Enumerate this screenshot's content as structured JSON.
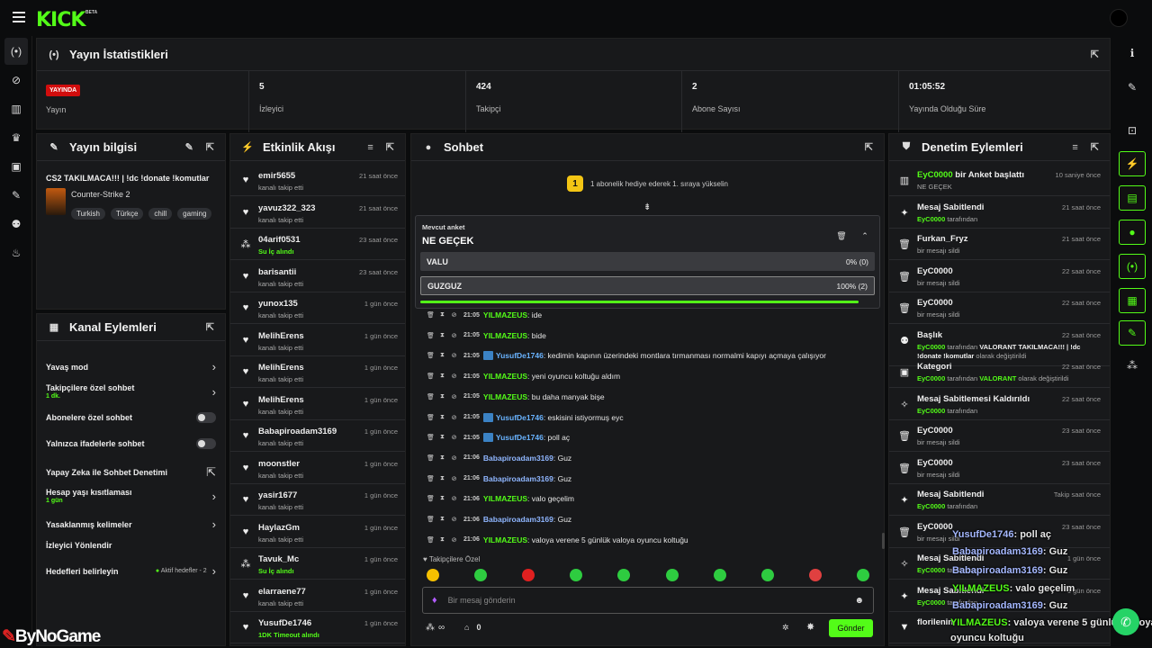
{
  "app": {
    "logo": "KICK",
    "beta": "BETA"
  },
  "left_nav": [
    {
      "icon": "broadcast-icon",
      "glyph": "(•)"
    },
    {
      "icon": "link-icon",
      "glyph": "⊘"
    },
    {
      "icon": "chart-icon",
      "glyph": "▥"
    },
    {
      "icon": "trophy-icon",
      "glyph": "♛"
    },
    {
      "icon": "video-icon",
      "glyph": "▣"
    },
    {
      "icon": "wrench-icon",
      "glyph": "✎"
    },
    {
      "icon": "users-icon",
      "glyph": "⚉"
    },
    {
      "icon": "creator-icon",
      "glyph": "♨"
    }
  ],
  "right_nav": [
    {
      "icon": "info-icon",
      "glyph": "ℹ",
      "boxed": false
    },
    {
      "icon": "pencil-icon",
      "glyph": "✎",
      "boxed": false
    },
    {
      "icon": "shrink-icon",
      "glyph": "⊡",
      "boxed": false
    },
    {
      "icon": "lightning-icon",
      "glyph": "⚡",
      "boxed": true
    },
    {
      "icon": "document-icon",
      "glyph": "▤",
      "boxed": true
    },
    {
      "icon": "chat-icon",
      "glyph": "●",
      "boxed": true
    },
    {
      "icon": "broadcast-icon",
      "glyph": "(•)",
      "boxed": true
    },
    {
      "icon": "layout-icon",
      "glyph": "▦",
      "boxed": true
    },
    {
      "icon": "wrench-icon",
      "glyph": "✎",
      "boxed": true
    },
    {
      "icon": "drops-icon",
      "glyph": "⁂",
      "boxed": false
    }
  ],
  "stats": {
    "title": "Yayın İstatistikleri",
    "live_badge": "YAYINDA",
    "items": [
      {
        "value": "",
        "label": "Yayın"
      },
      {
        "value": "5",
        "label": "İzleyici"
      },
      {
        "value": "424",
        "label": "Takipçi"
      },
      {
        "value": "2",
        "label": "Abone Sayısı"
      },
      {
        "value": "01:05:52",
        "label": "Yayında Olduğu Süre"
      }
    ]
  },
  "stream_info": {
    "title": "Yayın bilgisi",
    "stream_title": "CS2 TAKILMACA!!! | !dc !donate !komutlar",
    "game": "Counter-Strike 2",
    "tags": [
      "Turkish",
      "Türkçe",
      "chill",
      "gaming"
    ]
  },
  "channel_actions": {
    "title": "Kanal Eylemleri",
    "items": [
      {
        "label": "Yavaş mod",
        "sub": "",
        "control": "chevron"
      },
      {
        "label": "Takipçilere özel sohbet",
        "sub": "1 dk.",
        "control": "chevron"
      },
      {
        "label": "Abonelere özel sohbet",
        "sub": "",
        "control": "toggle"
      },
      {
        "label": "Yalnızca ifadelerle sohbet",
        "sub": "",
        "control": "toggle"
      },
      {
        "label": "Yapay Zeka ile Sohbet Denetimi",
        "sub": "",
        "control": "external"
      },
      {
        "label": "Hesap yaşı kısıtlaması",
        "sub": "1 gün",
        "control": "chevron"
      },
      {
        "label": "Yasaklanmış kelimeler",
        "sub": "",
        "control": "chevron"
      },
      {
        "label": "İzleyici Yönlendir",
        "sub": "",
        "control": "none"
      },
      {
        "label": "Hedefleri belirleyin",
        "sub": "",
        "control": "chevron",
        "extra": "Aktif hedefler - 2"
      }
    ]
  },
  "activity": {
    "title": "Etkinlik Akışı",
    "items": [
      {
        "icon": "heart-icon",
        "glyph": "♥",
        "name": "emir5655",
        "sub": "kanalı takip etti",
        "green": false,
        "time": "21 saat önce"
      },
      {
        "icon": "heart-icon",
        "glyph": "♥",
        "name": "yavuz322_323",
        "sub": "kanalı takip etti",
        "green": false,
        "time": "21 saat önce"
      },
      {
        "icon": "drops-icon",
        "glyph": "⁂",
        "name": "04arif0531",
        "sub": "Su İç alındı",
        "green": true,
        "time": "23 saat önce"
      },
      {
        "icon": "heart-icon",
        "glyph": "♥",
        "name": "barisantii",
        "sub": "kanalı takip etti",
        "green": false,
        "time": "23 saat önce"
      },
      {
        "icon": "heart-icon",
        "glyph": "♥",
        "name": "yunox135",
        "sub": "kanalı takip etti",
        "green": false,
        "time": "1 gün önce"
      },
      {
        "icon": "heart-icon",
        "glyph": "♥",
        "name": "MelihErens",
        "sub": "kanalı takip etti",
        "green": false,
        "time": "1 gün önce"
      },
      {
        "icon": "heart-icon",
        "glyph": "♥",
        "name": "MelihErens",
        "sub": "kanalı takip etti",
        "green": false,
        "time": "1 gün önce"
      },
      {
        "icon": "heart-icon",
        "glyph": "♥",
        "name": "MelihErens",
        "sub": "kanalı takip etti",
        "green": false,
        "time": "1 gün önce"
      },
      {
        "icon": "heart-icon",
        "glyph": "♥",
        "name": "Babapiroadam3169",
        "sub": "kanalı takip etti",
        "green": false,
        "time": "1 gün önce"
      },
      {
        "icon": "heart-icon",
        "glyph": "♥",
        "name": "moonstler",
        "sub": "kanalı takip etti",
        "green": false,
        "time": "1 gün önce"
      },
      {
        "icon": "heart-icon",
        "glyph": "♥",
        "name": "yasir1677",
        "sub": "kanalı takip etti",
        "green": false,
        "time": "1 gün önce"
      },
      {
        "icon": "heart-icon",
        "glyph": "♥",
        "name": "HaylazGm",
        "sub": "kanalı takip etti",
        "green": false,
        "time": "1 gün önce"
      },
      {
        "icon": "drops-icon",
        "glyph": "⁂",
        "name": "Tavuk_Mc",
        "sub": "Su İç alındı",
        "green": true,
        "time": "1 gün önce"
      },
      {
        "icon": "heart-icon",
        "glyph": "♥",
        "name": "elarraene77",
        "sub": "kanalı takip etti",
        "green": false,
        "time": "1 gün önce"
      },
      {
        "icon": "heart-icon",
        "glyph": "♥",
        "name": "YusufDe1746",
        "sub": "1DK Timeout alındı",
        "green": true,
        "time": "1 gün önce"
      }
    ]
  },
  "chat": {
    "title": "Sohbet",
    "banner_count": "1",
    "banner_text": "1 abonelik hediye ederek 1. sıraya yükselin",
    "poll": {
      "label": "Mevcut anket",
      "question": "NE GEÇEK",
      "options": [
        {
          "name": "VALU",
          "pct": "0% (0)",
          "selected": false
        },
        {
          "name": "GUZGUZ",
          "pct": "100% (2)",
          "selected": true
        }
      ],
      "progress": 1.0
    },
    "messages": [
      {
        "time": "21:05",
        "user": "YILMAZEUS",
        "color": "y",
        "badge": false,
        "text": "ide"
      },
      {
        "time": "21:05",
        "user": "YILMAZEUS",
        "color": "y",
        "badge": false,
        "text": "bide"
      },
      {
        "time": "21:05",
        "user": "YusufDe1746",
        "color": "b",
        "badge": true,
        "text": "kedimin kapının üzerindeki montlara tırmanması normalmi kapıyı açmaya çalışıyor"
      },
      {
        "time": "21:05",
        "user": "YILMAZEUS",
        "color": "y",
        "badge": false,
        "text": "yeni oyuncu koltuğu aldım"
      },
      {
        "time": "21:05",
        "user": "YILMAZEUS",
        "color": "y",
        "badge": false,
        "text": "bu daha manyak bişe"
      },
      {
        "time": "21:05",
        "user": "YusufDe1746",
        "color": "b",
        "badge": true,
        "text": "eskisini istiyormuş eyc"
      },
      {
        "time": "21:05",
        "user": "YusufDe1746",
        "color": "b",
        "badge": true,
        "text": "poll aç"
      },
      {
        "time": "21:06",
        "user": "Babapiroadam3169",
        "color": "p",
        "badge": false,
        "text": "Guz"
      },
      {
        "time": "21:06",
        "user": "Babapiroadam3169",
        "color": "p",
        "badge": false,
        "text": "Guz"
      },
      {
        "time": "21:06",
        "user": "YILMAZEUS",
        "color": "y",
        "badge": false,
        "text": "valo geçelim"
      },
      {
        "time": "21:06",
        "user": "Babapiroadam3169",
        "color": "p",
        "badge": false,
        "text": "Guz"
      },
      {
        "time": "21:06",
        "user": "YILMAZEUS",
        "color": "y",
        "badge": false,
        "text": "valoya verene 5 günlük valoya oyuncu koltuğu"
      }
    ],
    "followers_only": "Takipçilere Özel",
    "input_placeholder": "Bir mesaj gönderin",
    "points": "∞",
    "subs_count": "0",
    "send_label": "Gönder"
  },
  "moderation": {
    "title": "Denetim Eylemleri",
    "items": [
      {
        "icon": "poll-icon",
        "glyph": "▥",
        "title": [
          [
            "g",
            "EyC0000"
          ],
          [
            "w",
            " bir Anket başlattı"
          ]
        ],
        "desc": [
          [
            "t",
            "NE GEÇEK"
          ]
        ],
        "time": "10 saniye önce"
      },
      {
        "icon": "pin-icon",
        "glyph": "✦",
        "title": [
          [
            "w",
            "Mesaj Sabitlendi"
          ]
        ],
        "desc": [
          [
            "g",
            "EyC0000"
          ],
          [
            "t",
            " tarafından"
          ]
        ],
        "time": "21 saat önce"
      },
      {
        "icon": "trash-icon",
        "glyph": "🗑",
        "title": [
          [
            "w",
            "Furkan_Fryz"
          ]
        ],
        "desc": [
          [
            "t",
            "bir mesajı sildi"
          ]
        ],
        "time": "21 saat önce"
      },
      {
        "icon": "trash-icon",
        "glyph": "🗑",
        "title": [
          [
            "w",
            "EyC0000"
          ]
        ],
        "desc": [
          [
            "t",
            "bir mesajı sildi"
          ]
        ],
        "time": "22 saat önce"
      },
      {
        "icon": "trash-icon",
        "glyph": "🗑",
        "title": [
          [
            "w",
            "EyC0000"
          ]
        ],
        "desc": [
          [
            "t",
            "bir mesajı sildi"
          ]
        ],
        "time": "22 saat önce"
      },
      {
        "icon": "user-edit-icon",
        "glyph": "⚉",
        "title": [
          [
            "w",
            "Başlık"
          ]
        ],
        "desc": [
          [
            "g",
            "EyC0000"
          ],
          [
            "t",
            " tarafından "
          ],
          [
            "b",
            "VALORANT TAKILMACA!!! | !dc !donate !komutlar"
          ],
          [
            "t",
            " olarak değiştirildi"
          ]
        ],
        "time": "22 saat önce"
      },
      {
        "icon": "category-icon",
        "glyph": "▣",
        "title": [
          [
            "w",
            "Kategori"
          ]
        ],
        "desc": [
          [
            "g",
            "EyC0000"
          ],
          [
            "t",
            " tarafından "
          ],
          [
            "g",
            "VALORANT"
          ],
          [
            "t",
            " olarak değiştirildi"
          ]
        ],
        "time": "22 saat önce"
      },
      {
        "icon": "unpin-icon",
        "glyph": "✧",
        "title": [
          [
            "w",
            "Mesaj Sabitlemesi Kaldırıldı"
          ]
        ],
        "desc": [
          [
            "g",
            "EyC0000"
          ],
          [
            "t",
            " tarafından"
          ]
        ],
        "time": "22 saat önce"
      },
      {
        "icon": "trash-icon",
        "glyph": "🗑",
        "title": [
          [
            "w",
            "EyC0000"
          ]
        ],
        "desc": [
          [
            "t",
            "bir mesajı sildi"
          ]
        ],
        "time": "23 saat önce"
      },
      {
        "icon": "trash-icon",
        "glyph": "🗑",
        "title": [
          [
            "w",
            "EyC0000"
          ]
        ],
        "desc": [
          [
            "t",
            "bir mesajı sildi"
          ]
        ],
        "time": "23 saat önce"
      },
      {
        "icon": "pin-icon",
        "glyph": "✦",
        "title": [
          [
            "w",
            "Mesaj Sabitlendi"
          ]
        ],
        "desc": [
          [
            "g",
            "EyC0000"
          ],
          [
            "t",
            " tarafından"
          ]
        ],
        "time": "Takip saat önce"
      },
      {
        "icon": "trash-icon",
        "glyph": "🗑",
        "title": [
          [
            "w",
            "EyC0000"
          ]
        ],
        "desc": [
          [
            "t",
            "bir mesajı sildi"
          ]
        ],
        "time": "23 saat önce"
      },
      {
        "icon": "unpin-icon",
        "glyph": "✧",
        "title": [
          [
            "w",
            "Mesaj Sabitlendi"
          ]
        ],
        "desc": [
          [
            "g",
            "EyC0000"
          ],
          [
            "t",
            " tarafından"
          ]
        ],
        "time": "1 gün önce"
      },
      {
        "icon": "pin-icon",
        "glyph": "✦",
        "title": [
          [
            "w",
            "Mesaj Sabitlendi"
          ]
        ],
        "desc": [
          [
            "g",
            "EyC0000"
          ],
          [
            "t",
            " tarafından"
          ]
        ],
        "time": "1 gün önce"
      },
      {
        "icon": "filter-icon",
        "glyph": "▼",
        "title": [
          [
            "w",
            "florilenin"
          ]
        ],
        "desc": [],
        "time": ""
      }
    ]
  },
  "overlay": [
    {
      "user": "YusufDe1746",
      "color": "p",
      "text": ": poll aç"
    },
    {
      "user": "Babapiroadam3169",
      "color": "p",
      "text": ": Guz"
    },
    {
      "user": "Babapiroadam3169",
      "color": "p",
      "text": ": Guz"
    },
    {
      "user": "YILMAZEUS",
      "color": "y",
      "text": ": valo geçelim"
    },
    {
      "user": "Babapiroadam3169",
      "color": "p",
      "text": ": Guz"
    },
    {
      "user": "YILMAZEUS",
      "color": "y",
      "text": ": valoya verene 5 günlük valoya"
    },
    {
      "user": "",
      "color": "y",
      "text": "oyuncu koltuğu"
    }
  ],
  "watermark": {
    "prefix": "",
    "text": "ByNoGame"
  }
}
